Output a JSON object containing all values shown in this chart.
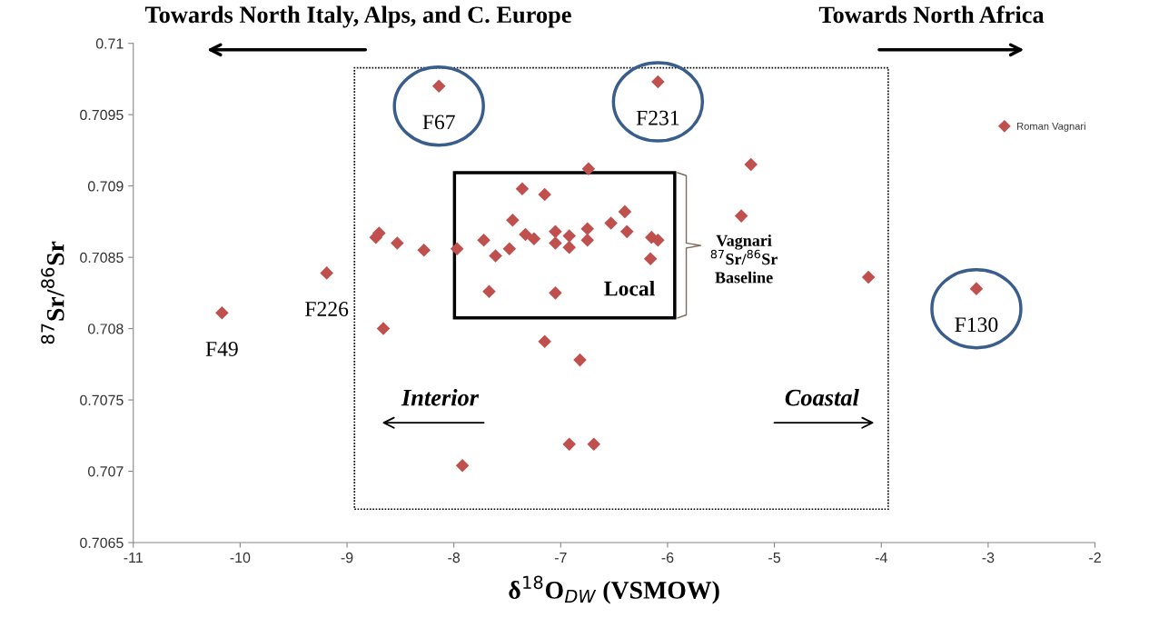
{
  "chart_data": {
    "type": "scatter",
    "xlabel": "δ$^{18}$O$_{DW}$ (VSMOW)",
    "ylabel": "$^{87}$Sr/$^{86}$Sr",
    "xlim": [
      -11,
      -2
    ],
    "xticks": [
      -11,
      -10,
      -9,
      -8,
      -7,
      -6,
      -5,
      -4,
      -3,
      -2
    ],
    "ylim": [
      0.7065,
      0.71
    ],
    "yticks": [
      0.7065,
      0.707,
      0.7075,
      0.708,
      0.7085,
      0.709,
      0.7095,
      0.71
    ],
    "grid": false,
    "legend": "top right",
    "marker": "diamond",
    "series": [
      {
        "name": "Roman Vagnari",
        "color": "#c0504d",
        "x": [
          -8.14,
          -6.09,
          -6.74,
          -7.36,
          -7.15,
          -7.45,
          -6.4,
          -6.53,
          -6.38,
          -8.7,
          -8.73,
          -8.54,
          -8.53,
          -8.28,
          -7.97,
          -7.72,
          -7.33,
          -7.25,
          -7.05,
          -7.05,
          -6.92,
          -6.92,
          -6.75,
          -6.75,
          -7.48,
          -7.61,
          -6.15,
          -6.09,
          -6.16,
          -7.67,
          -7.05,
          -9.19,
          -10.17,
          -8.66,
          -7.15,
          -6.82,
          -6.92,
          -6.69,
          -7.92,
          -4.12,
          -3.11,
          -5.22,
          -5.31
        ],
        "values": [
          0.7097,
          0.70973,
          0.70912,
          0.70898,
          0.70894,
          0.70876,
          0.70882,
          0.70874,
          0.70868,
          0.70867,
          0.70864,
          null,
          0.7086,
          0.70855,
          0.70856,
          0.70862,
          0.70866,
          0.70863,
          0.70868,
          0.7086,
          0.70865,
          0.70857,
          0.7087,
          0.70862,
          0.70856,
          0.70851,
          0.70864,
          0.70862,
          0.70849,
          0.70826,
          0.70825,
          0.70839,
          0.70811,
          0.708,
          0.70791,
          0.70778,
          0.70719,
          0.70719,
          0.70704,
          0.70836,
          0.70828,
          0.70915,
          0.70879
        ]
      }
    ],
    "annotations": [
      {
        "text": "F67",
        "x": -8.14,
        "y": 0.7097
      },
      {
        "text": "F231",
        "x": -6.09,
        "y": 0.70973
      },
      {
        "text": "F130",
        "x": -3.11,
        "y": 0.70828
      },
      {
        "text": "F226",
        "x": -9.19,
        "y": 0.70839
      },
      {
        "text": "F49",
        "x": -10.17,
        "y": 0.70811
      },
      "Towards North Italy, Alps, and C. Europe",
      "Towards North Africa",
      "Interior",
      "Coastal",
      "Local",
      "Vagnari\n$^{87}$Sr/$^{86}$Sr\nBaseline"
    ]
  }
}
